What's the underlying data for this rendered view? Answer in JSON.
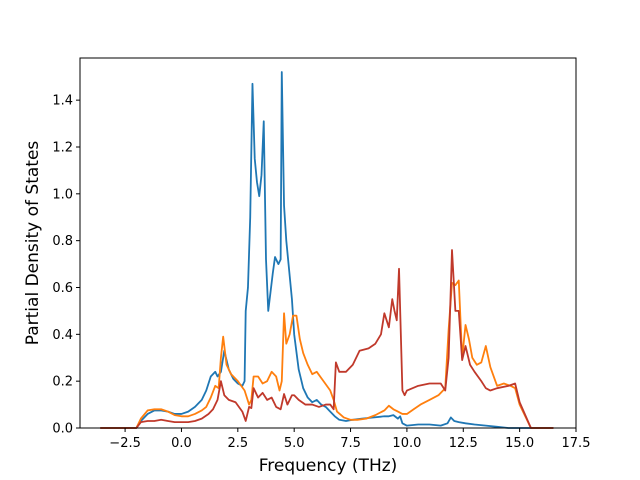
{
  "chart_data": {
    "type": "line",
    "xlabel": "Frequency (THz)",
    "ylabel": "Partial Density of States",
    "xlim": [
      -4.5,
      17.5
    ],
    "ylim": [
      0.0,
      1.58
    ],
    "xticks": [
      -2.5,
      0.0,
      2.5,
      5.0,
      7.5,
      10.0,
      12.5,
      15.0,
      17.5
    ],
    "xtick_labels": [
      "−2.5",
      "0.0",
      "2.5",
      "5.0",
      "7.5",
      "10.0",
      "12.5",
      "15.0",
      "17.5"
    ],
    "yticks": [
      0.0,
      0.2,
      0.4,
      0.6,
      0.8,
      1.0,
      1.2,
      1.4
    ],
    "ytick_labels": [
      "0.0",
      "0.2",
      "0.4",
      "0.6",
      "0.8",
      "1.0",
      "1.2",
      "1.4"
    ],
    "grid": false,
    "series": [
      {
        "color": "#1f77b4",
        "x": [
          -3.6,
          -2.0,
          -1.8,
          -1.5,
          -1.2,
          -0.9,
          -0.6,
          -0.3,
          0.0,
          0.3,
          0.6,
          0.9,
          1.1,
          1.3,
          1.5,
          1.6,
          1.75,
          1.9,
          2.1,
          2.3,
          2.5,
          2.7,
          2.8,
          2.85,
          2.95,
          3.05,
          3.15,
          3.25,
          3.35,
          3.45,
          3.55,
          3.65,
          3.75,
          3.85,
          3.95,
          4.05,
          4.15,
          4.3,
          4.4,
          4.45,
          4.55,
          4.65,
          4.75,
          4.9,
          5.0,
          5.2,
          5.4,
          5.6,
          5.8,
          6.0,
          6.2,
          6.4,
          6.6,
          6.8,
          7.0,
          7.3,
          7.6,
          8.0,
          8.5,
          9.0,
          9.2,
          9.4,
          9.6,
          9.7,
          9.8,
          10.0,
          10.5,
          11.0,
          11.5,
          11.8,
          11.95,
          12.1,
          12.3,
          12.6,
          13.0,
          13.5,
          14.0,
          14.5,
          15.0,
          15.5,
          16.5
        ],
        "values": [
          0.0,
          0.0,
          0.03,
          0.06,
          0.075,
          0.075,
          0.07,
          0.06,
          0.06,
          0.07,
          0.09,
          0.12,
          0.16,
          0.22,
          0.24,
          0.22,
          0.24,
          0.33,
          0.25,
          0.21,
          0.19,
          0.18,
          0.2,
          0.5,
          0.6,
          0.9,
          1.47,
          1.15,
          1.05,
          0.99,
          1.08,
          1.31,
          0.72,
          0.5,
          0.58,
          0.66,
          0.73,
          0.7,
          0.72,
          1.52,
          0.95,
          0.8,
          0.7,
          0.55,
          0.4,
          0.25,
          0.17,
          0.13,
          0.11,
          0.12,
          0.1,
          0.09,
          0.07,
          0.05,
          0.035,
          0.03,
          0.035,
          0.04,
          0.045,
          0.05,
          0.05,
          0.055,
          0.04,
          0.05,
          0.02,
          0.01,
          0.015,
          0.015,
          0.01,
          0.02,
          0.045,
          0.03,
          0.025,
          0.02,
          0.015,
          0.01,
          0.005,
          0.0,
          0.0,
          0.0,
          0.0
        ]
      },
      {
        "color": "#ff7f0e",
        "x": [
          -3.6,
          -2.0,
          -1.8,
          -1.5,
          -1.2,
          -0.9,
          -0.6,
          -0.3,
          0.0,
          0.3,
          0.6,
          0.9,
          1.1,
          1.3,
          1.5,
          1.65,
          1.75,
          1.85,
          2.0,
          2.2,
          2.5,
          2.8,
          3.0,
          3.1,
          3.2,
          3.4,
          3.6,
          3.8,
          4.0,
          4.2,
          4.35,
          4.45,
          4.55,
          4.65,
          4.8,
          4.95,
          5.1,
          5.25,
          5.4,
          5.6,
          5.8,
          6.0,
          6.3,
          6.6,
          6.75,
          6.9,
          7.2,
          7.5,
          7.8,
          8.2,
          8.6,
          9.0,
          9.2,
          9.4,
          9.6,
          9.8,
          10.0,
          10.3,
          10.6,
          11.0,
          11.4,
          11.7,
          11.85,
          12.0,
          12.15,
          12.3,
          12.45,
          12.6,
          12.75,
          12.9,
          13.1,
          13.3,
          13.5,
          13.7,
          14.0,
          14.3,
          14.6,
          14.8,
          15.0,
          15.5,
          16.5
        ],
        "values": [
          0.0,
          0.0,
          0.04,
          0.075,
          0.08,
          0.08,
          0.07,
          0.055,
          0.05,
          0.05,
          0.06,
          0.075,
          0.09,
          0.13,
          0.18,
          0.17,
          0.3,
          0.39,
          0.27,
          0.23,
          0.2,
          0.16,
          0.1,
          0.12,
          0.22,
          0.22,
          0.19,
          0.2,
          0.24,
          0.22,
          0.16,
          0.2,
          0.49,
          0.36,
          0.4,
          0.48,
          0.48,
          0.38,
          0.32,
          0.27,
          0.23,
          0.24,
          0.2,
          0.16,
          0.12,
          0.07,
          0.045,
          0.035,
          0.035,
          0.04,
          0.055,
          0.075,
          0.095,
          0.08,
          0.07,
          0.06,
          0.06,
          0.08,
          0.1,
          0.12,
          0.14,
          0.17,
          0.42,
          0.62,
          0.61,
          0.63,
          0.3,
          0.44,
          0.38,
          0.3,
          0.27,
          0.28,
          0.35,
          0.26,
          0.18,
          0.19,
          0.18,
          0.17,
          0.1,
          0.0,
          0.0
        ]
      },
      {
        "color": "#c0392b",
        "x": [
          -3.6,
          -2.0,
          -1.8,
          -1.5,
          -1.2,
          -0.9,
          -0.6,
          -0.3,
          0.0,
          0.3,
          0.6,
          0.9,
          1.2,
          1.4,
          1.6,
          1.75,
          1.9,
          2.1,
          2.4,
          2.7,
          2.85,
          3.0,
          3.1,
          3.2,
          3.4,
          3.6,
          3.8,
          4.0,
          4.2,
          4.4,
          4.55,
          4.7,
          4.9,
          5.0,
          5.2,
          5.5,
          5.8,
          6.1,
          6.4,
          6.6,
          6.75,
          6.85,
          7.0,
          7.3,
          7.6,
          7.9,
          8.3,
          8.6,
          8.85,
          9.0,
          9.2,
          9.35,
          9.45,
          9.55,
          9.65,
          9.8,
          9.9,
          10.0,
          10.5,
          11.0,
          11.5,
          11.7,
          11.85,
          12.0,
          12.15,
          12.3,
          12.45,
          12.6,
          12.8,
          13.0,
          13.3,
          13.5,
          13.7,
          14.0,
          14.5,
          14.8,
          15.0,
          15.5,
          16.5
        ],
        "values": [
          0.0,
          0.0,
          0.025,
          0.03,
          0.03,
          0.035,
          0.03,
          0.025,
          0.025,
          0.025,
          0.03,
          0.04,
          0.06,
          0.08,
          0.12,
          0.2,
          0.14,
          0.12,
          0.11,
          0.07,
          0.03,
          0.09,
          0.085,
          0.17,
          0.13,
          0.15,
          0.12,
          0.13,
          0.09,
          0.08,
          0.145,
          0.1,
          0.14,
          0.14,
          0.12,
          0.1,
          0.1,
          0.09,
          0.1,
          0.1,
          0.08,
          0.28,
          0.24,
          0.24,
          0.27,
          0.33,
          0.34,
          0.36,
          0.4,
          0.49,
          0.43,
          0.55,
          0.5,
          0.46,
          0.68,
          0.16,
          0.14,
          0.16,
          0.18,
          0.19,
          0.19,
          0.16,
          0.3,
          0.76,
          0.5,
          0.5,
          0.29,
          0.35,
          0.27,
          0.24,
          0.2,
          0.17,
          0.16,
          0.17,
          0.18,
          0.19,
          0.11,
          0.0,
          0.0
        ]
      }
    ]
  }
}
